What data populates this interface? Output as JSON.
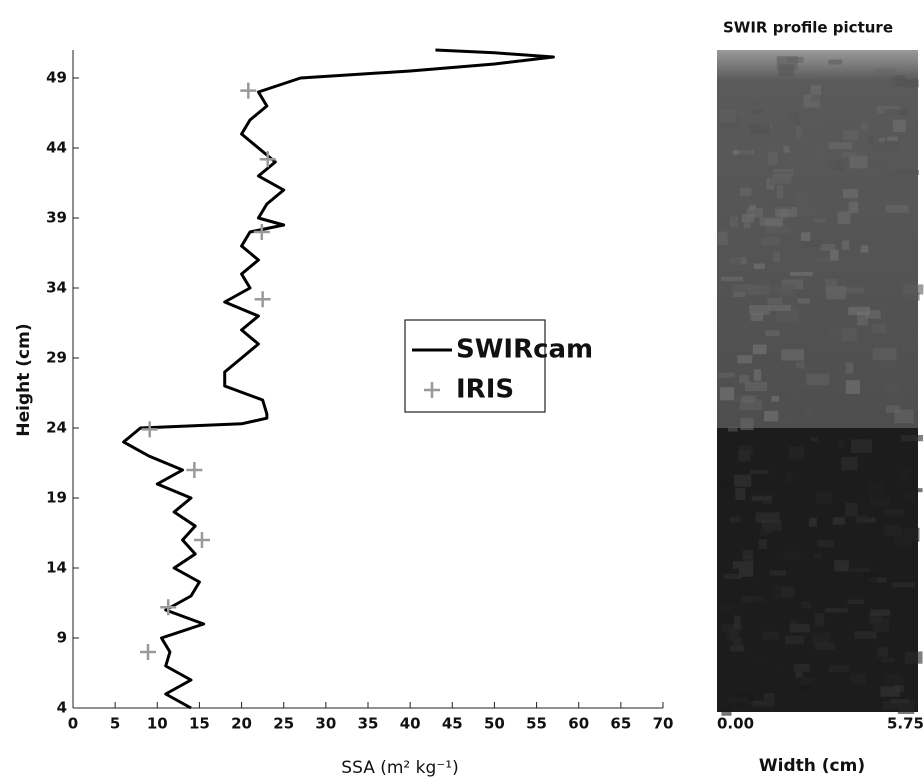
{
  "chart_data": {
    "type": "profile",
    "xlabel": "SSA (m² kg⁻¹)",
    "ylabel": "Height (cm)",
    "xlim": [
      0,
      70
    ],
    "xticks": [
      0,
      5,
      10,
      15,
      20,
      25,
      30,
      35,
      40,
      45,
      50,
      55,
      60,
      65,
      70
    ],
    "ylim": [
      4,
      51
    ],
    "yticks": [
      4,
      9,
      14,
      19,
      24,
      29,
      34,
      39,
      44,
      49
    ],
    "series": [
      {
        "name": "SWIRcam",
        "color": "#000000",
        "style": "line",
        "heights": [
          4,
          5,
          6,
          7,
          8,
          9,
          10,
          11,
          12,
          13,
          14,
          15,
          16,
          17,
          18,
          19,
          20,
          21,
          22,
          23,
          24,
          24.3,
          24.7,
          25,
          26,
          27,
          28,
          29,
          30,
          31,
          32,
          33,
          34,
          35,
          36,
          37,
          38,
          38.5,
          39,
          40,
          41,
          42,
          43,
          44,
          45,
          46,
          47,
          48,
          49,
          49.5,
          50,
          50.5,
          50.8,
          51
        ],
        "values": [
          14,
          11,
          14,
          11,
          11.5,
          10.5,
          15.5,
          11,
          14,
          15,
          12,
          14.5,
          13,
          14.5,
          12,
          14,
          10,
          13,
          9,
          6,
          8,
          20,
          23,
          23,
          22.5,
          18,
          18,
          20,
          22,
          20,
          22,
          18,
          21,
          20,
          22,
          20,
          21,
          25,
          22,
          23,
          25,
          22,
          24,
          22,
          20,
          21,
          23,
          22,
          27,
          40,
          50,
          57,
          50,
          43
        ]
      },
      {
        "name": "IRIS",
        "color": "#999999",
        "style": "cross",
        "heights": [
          48.1,
          43.2,
          38,
          33.2,
          23.9,
          21,
          16,
          11.2,
          8
        ],
        "values": [
          20.8,
          23.1,
          22.4,
          22.5,
          9.1,
          14.4,
          15.3,
          11.3,
          8.9
        ]
      }
    ]
  },
  "image_panel": {
    "title": "SWIR profile picture",
    "xtick_labels": [
      "0.00",
      "5.75"
    ],
    "xlabel": "Width (cm)"
  }
}
